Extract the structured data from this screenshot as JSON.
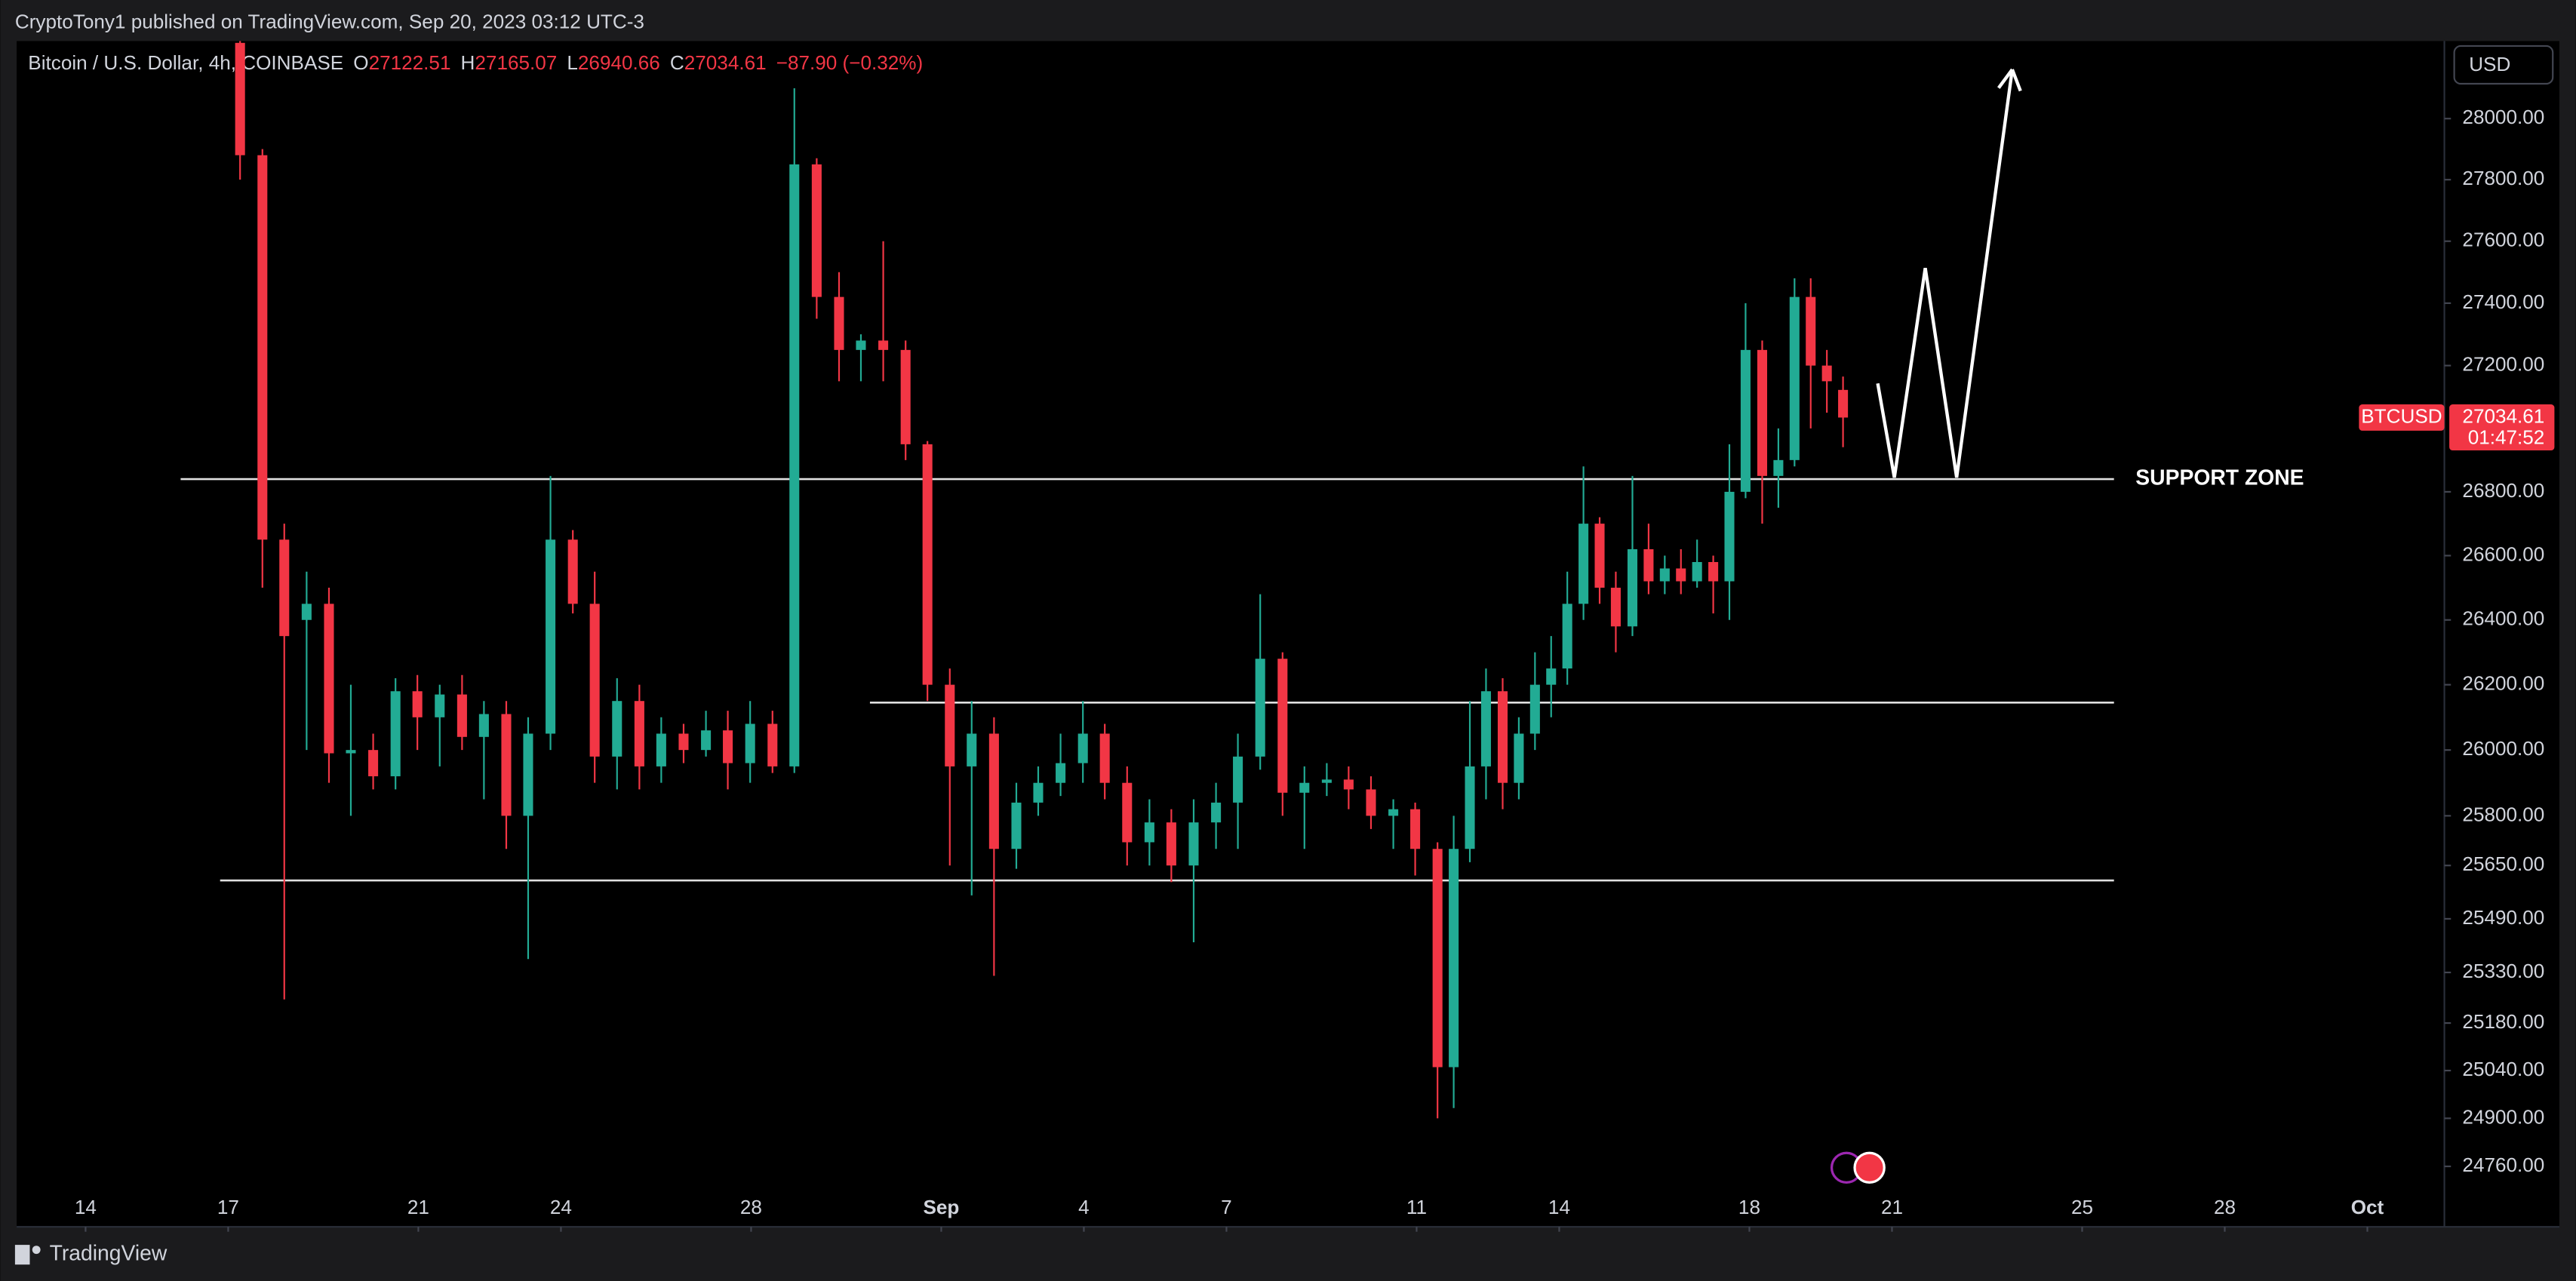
{
  "header": {
    "text": "CryptoTony1 published on TradingView.com, Sep 20, 2023 03:12 UTC-3"
  },
  "footer": {
    "brand": "TradingView"
  },
  "chart_data": {
    "type": "candlestick",
    "title": "Bitcoin / U.S. Dollar, 4h, COINBASE",
    "ohlc_labels": [
      "O",
      "H",
      "L",
      "C"
    ],
    "change": "−87.90 (−0.32%)",
    "currency": "USD",
    "symbol": "BTCUSD",
    "countdown": "01:47:52",
    "annotation": "SUPPORT ZONE",
    "log_y": true,
    "grid": false,
    "up_color": "#22ab94",
    "down_color": "#f23645",
    "xlim": [
      12.55,
      63.62
    ],
    "ylim": [
      24585,
      28256
    ],
    "xticks": [
      14,
      17,
      21,
      24,
      28,
      {
        "value": 32,
        "label": "Sep"
      },
      {
        "value": 35,
        "label": "4"
      },
      {
        "value": 38,
        "label": "7"
      },
      {
        "value": 42,
        "label": "11"
      },
      {
        "value": 45,
        "label": "14"
      },
      {
        "value": 49,
        "label": "18"
      },
      {
        "value": 52,
        "label": "21"
      },
      {
        "value": 56,
        "label": "25"
      },
      {
        "value": 59,
        "label": "28"
      },
      {
        "value": 62,
        "label": "Oct"
      }
    ],
    "yticks": [
      {
        "value": 28000,
        "label": "28000.00"
      },
      {
        "value": 27800,
        "label": "27800.00"
      },
      {
        "value": 27600,
        "label": "27600.00"
      },
      {
        "value": 27400,
        "label": "27400.00"
      },
      {
        "value": 27200,
        "label": "27200.00"
      },
      {
        "value": 26800,
        "label": "26800.00"
      },
      {
        "value": 26600,
        "label": "26600.00"
      },
      {
        "value": 26400,
        "label": "26400.00"
      },
      {
        "value": 26200,
        "label": "26200.00"
      },
      {
        "value": 26000,
        "label": "26000.00"
      },
      {
        "value": 25800,
        "label": "25800.00"
      },
      {
        "value": 25650,
        "label": "25650.00"
      },
      {
        "value": 25490,
        "label": "25490.00"
      },
      {
        "value": 25330,
        "label": "25330.00"
      },
      {
        "value": 25180,
        "label": "25180.00"
      },
      {
        "value": 25040,
        "label": "25040.00"
      },
      {
        "value": 24900,
        "label": "24900.00"
      },
      {
        "value": 24760,
        "label": "24760.00"
      }
    ],
    "x": [
      17.25,
      17.72,
      18.18,
      18.65,
      19.12,
      19.58,
      20.05,
      20.52,
      20.98,
      21.45,
      21.92,
      22.38,
      22.85,
      23.31,
      23.78,
      24.25,
      24.71,
      25.18,
      25.65,
      26.11,
      26.58,
      27.05,
      27.51,
      27.98,
      28.45,
      28.91,
      29.38,
      29.85,
      30.31,
      30.78,
      31.25,
      31.71,
      32.18,
      32.64,
      33.11,
      33.58,
      34.04,
      34.51,
      34.98,
      35.44,
      35.91,
      36.38,
      36.84,
      37.31,
      37.78,
      38.24,
      38.71,
      39.18,
      39.64,
      40.11,
      40.57,
      41.04,
      41.51,
      41.97,
      42.44,
      42.78,
      43.12,
      43.46,
      43.81,
      44.15,
      44.49,
      44.83,
      45.17,
      45.51,
      45.85,
      46.19,
      46.54,
      46.88,
      47.22,
      47.56,
      47.9,
      48.24,
      48.58,
      48.92,
      49.27,
      49.61,
      49.95,
      50.29,
      50.63,
      50.97
    ],
    "open": [
      28250,
      27880,
      26650,
      26400,
      26450,
      25990,
      26000,
      25920,
      26180,
      26100,
      26170,
      26040,
      26110,
      25800,
      26050,
      26650,
      26450,
      25980,
      26150,
      25950,
      26050,
      26000,
      26060,
      25960,
      26080,
      25950,
      27850,
      27420,
      27250,
      27280,
      27250,
      26950,
      26200,
      25950,
      26050,
      25700,
      25840,
      25900,
      25960,
      26050,
      25900,
      25720,
      25780,
      25650,
      25780,
      25840,
      25980,
      26280,
      25870,
      25900,
      25910,
      25880,
      25800,
      25820,
      25700,
      25050,
      25700,
      25950,
      26180,
      25900,
      26050,
      26200,
      26250,
      26450,
      26700,
      26500,
      26380,
      26620,
      26520,
      26560,
      26520,
      26580,
      26520,
      26800,
      27250,
      26850,
      26900,
      27420,
      27200,
      27122.51
    ],
    "high": [
      28256,
      27900,
      26700,
      26550,
      26500,
      26200,
      26050,
      26220,
      26230,
      26200,
      26230,
      26150,
      26150,
      26100,
      26850,
      26680,
      26550,
      26220,
      26200,
      26100,
      26080,
      26120,
      26120,
      26150,
      26120,
      28100,
      27870,
      27500,
      27300,
      27600,
      27280,
      26960,
      26250,
      26150,
      26100,
      25900,
      25950,
      26050,
      26150,
      26080,
      25950,
      25850,
      25820,
      25850,
      25900,
      26050,
      26480,
      26300,
      25950,
      25960,
      25950,
      25920,
      25850,
      25840,
      25720,
      25800,
      26150,
      26250,
      26220,
      26100,
      26300,
      26350,
      26550,
      26880,
      26720,
      26550,
      26850,
      26700,
      26600,
      26620,
      26650,
      26600,
      26950,
      27400,
      27280,
      27000,
      27480,
      27480,
      27250,
      27165.07
    ],
    "low": [
      27800,
      26500,
      25250,
      26000,
      25900,
      25800,
      25880,
      25880,
      26000,
      25950,
      26000,
      25850,
      25700,
      25370,
      26000,
      26420,
      25900,
      25880,
      25880,
      25900,
      25960,
      25980,
      25880,
      25900,
      25930,
      25930,
      27350,
      27150,
      27150,
      27150,
      26900,
      26150,
      25650,
      25560,
      25320,
      25640,
      25800,
      25860,
      25900,
      25850,
      25650,
      25650,
      25600,
      25420,
      25700,
      25700,
      25940,
      25800,
      25700,
      25860,
      25820,
      25760,
      25700,
      25620,
      24900,
      24930,
      25660,
      25850,
      25820,
      25850,
      26000,
      26100,
      26200,
      26400,
      26450,
      26300,
      26350,
      26480,
      26480,
      26480,
      26500,
      26420,
      26400,
      26780,
      26700,
      26750,
      26880,
      27000,
      27050,
      26940.66
    ],
    "close": [
      27880,
      26650,
      26350,
      26450,
      25990,
      26000,
      25920,
      26180,
      26100,
      26170,
      26040,
      26110,
      25800,
      26050,
      26650,
      26450,
      25980,
      26150,
      25950,
      26050,
      26000,
      26060,
      25960,
      26080,
      25950,
      27850,
      27420,
      27250,
      27280,
      27250,
      26950,
      26200,
      25950,
      26050,
      25700,
      25840,
      25900,
      25960,
      26050,
      25900,
      25720,
      25780,
      25650,
      25780,
      25840,
      25980,
      26280,
      25870,
      25900,
      25910,
      25880,
      25800,
      25820,
      25700,
      25050,
      25700,
      25950,
      26180,
      25900,
      26050,
      26200,
      26250,
      26450,
      26700,
      26500,
      26380,
      26620,
      26520,
      26560,
      26520,
      26580,
      26520,
      26800,
      27250,
      26850,
      26900,
      27420,
      27200,
      27150,
      27034.61
    ],
    "levels": [
      {
        "price": 26840,
        "x": [
          16.0,
          56.67
        ]
      },
      {
        "price": 26145,
        "x": [
          30.5,
          56.67
        ]
      },
      {
        "price": 25605,
        "x": [
          16.83,
          56.67
        ]
      }
    ],
    "projection": {
      "x": [
        51.7,
        52.05,
        52.7,
        53.36,
        54.53
      ],
      "y": [
        27143,
        26845,
        27513,
        26845,
        28162
      ]
    }
  }
}
